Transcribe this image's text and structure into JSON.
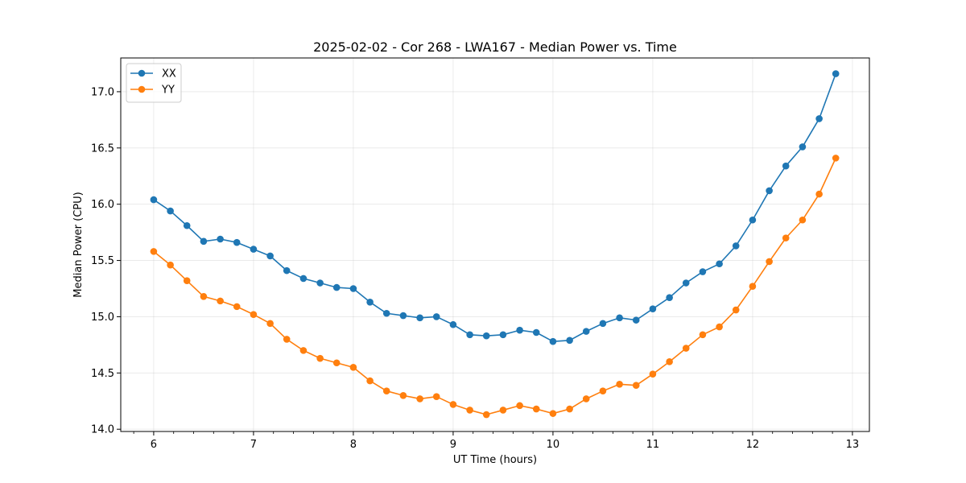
{
  "chart_data": {
    "type": "line",
    "title": "2025-02-02 - Cor 268 - LWA167 - Median Power vs. Time",
    "xlabel": "UT Time (hours)",
    "ylabel": "Median Power (CPU)",
    "xlim": [
      5.67,
      13.17
    ],
    "ylim": [
      13.98,
      17.3
    ],
    "xticks": [
      6,
      7,
      8,
      9,
      10,
      11,
      12,
      13
    ],
    "yticks": [
      14.0,
      14.5,
      15.0,
      15.5,
      16.0,
      16.5,
      17.0
    ],
    "xtick_labels": [
      "6",
      "7",
      "8",
      "9",
      "10",
      "11",
      "12",
      "13"
    ],
    "ytick_labels": [
      "14.0",
      "14.5",
      "15.0",
      "15.5",
      "16.0",
      "16.5",
      "17.0"
    ],
    "grid": true,
    "legend_position": "top-left",
    "x": [
      6.0,
      6.167,
      6.333,
      6.5,
      6.667,
      6.833,
      7.0,
      7.167,
      7.333,
      7.5,
      7.667,
      7.833,
      8.0,
      8.167,
      8.333,
      8.5,
      8.667,
      8.833,
      9.0,
      9.167,
      9.333,
      9.5,
      9.667,
      9.833,
      10.0,
      10.167,
      10.333,
      10.5,
      10.667,
      10.833,
      11.0,
      11.167,
      11.333,
      11.5,
      11.667,
      11.833,
      12.0,
      12.167,
      12.333,
      12.5,
      12.667,
      12.833
    ],
    "series": [
      {
        "name": "XX",
        "color": "#1f77b4",
        "values": [
          16.04,
          15.94,
          15.81,
          15.67,
          15.69,
          15.66,
          15.6,
          15.54,
          15.41,
          15.34,
          15.3,
          15.26,
          15.25,
          15.13,
          15.03,
          15.01,
          14.99,
          15.0,
          14.93,
          14.84,
          14.83,
          14.84,
          14.88,
          14.86,
          14.78,
          14.79,
          14.87,
          14.94,
          14.99,
          14.97,
          15.07,
          15.17,
          15.3,
          15.4,
          15.47,
          15.63,
          15.86,
          16.12,
          16.34,
          16.51,
          16.76,
          17.16
        ]
      },
      {
        "name": "YY",
        "color": "#ff7f0e",
        "values": [
          15.58,
          15.46,
          15.32,
          15.18,
          15.14,
          15.09,
          15.02,
          14.94,
          14.8,
          14.7,
          14.63,
          14.59,
          14.55,
          14.43,
          14.34,
          14.3,
          14.27,
          14.29,
          14.22,
          14.17,
          14.13,
          14.17,
          14.21,
          14.18,
          14.14,
          14.18,
          14.27,
          14.34,
          14.4,
          14.39,
          14.49,
          14.6,
          14.72,
          14.84,
          14.91,
          15.06,
          15.27,
          15.49,
          15.7,
          15.86,
          16.09,
          16.41
        ]
      }
    ]
  }
}
